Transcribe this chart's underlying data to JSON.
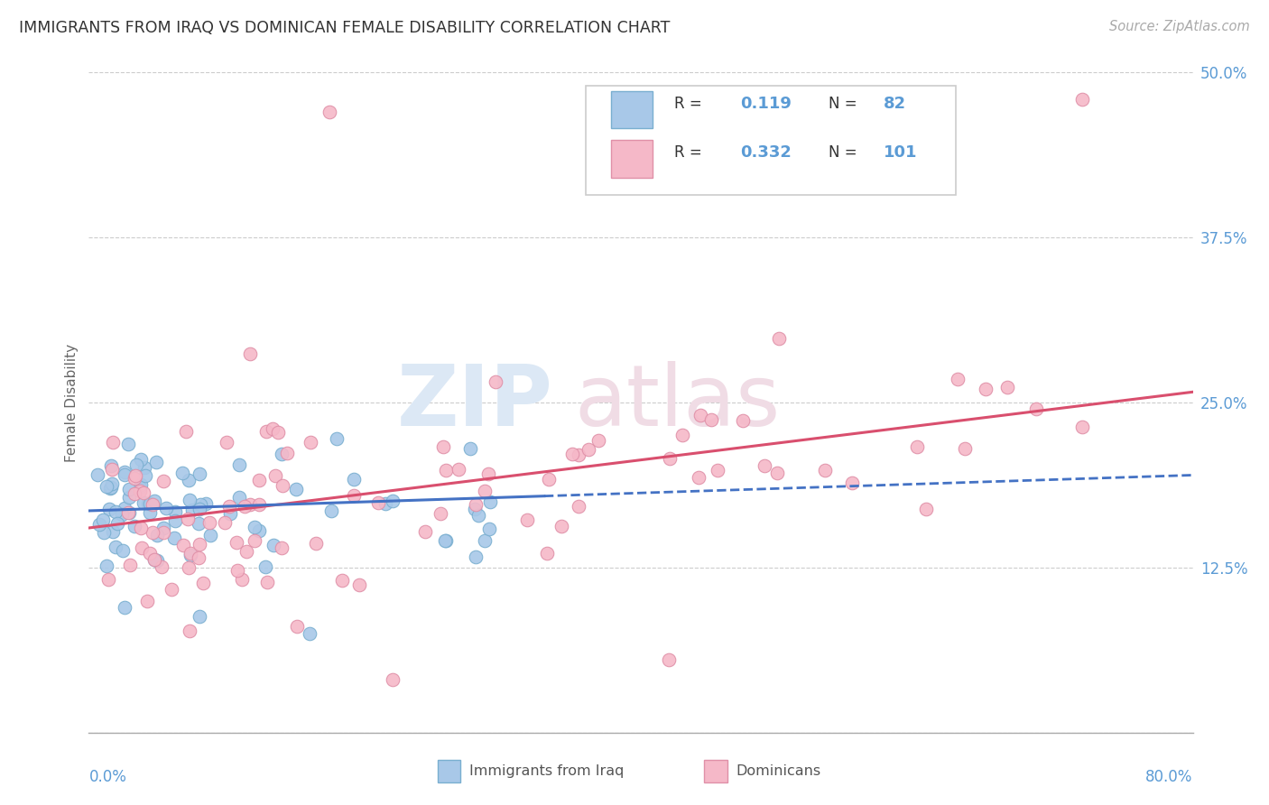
{
  "title": "IMMIGRANTS FROM IRAQ VS DOMINICAN FEMALE DISABILITY CORRELATION CHART",
  "source": "Source: ZipAtlas.com",
  "ylabel": "Female Disability",
  "x_range": [
    0.0,
    0.8
  ],
  "y_range": [
    0.0,
    0.5
  ],
  "y_ticks": [
    0.0,
    0.125,
    0.25,
    0.375,
    0.5
  ],
  "y_tick_labels": [
    "",
    "12.5%",
    "25.0%",
    "37.5%",
    "50.0%"
  ],
  "iraq_R": 0.119,
  "iraq_N": 82,
  "dom_R": 0.332,
  "dom_N": 101,
  "iraq_scatter_color": "#a8c8e8",
  "iraq_scatter_edge": "#7aafd0",
  "dominican_scatter_color": "#f5b8c8",
  "dominican_scatter_edge": "#e090a8",
  "iraq_line_color": "#4472c4",
  "dominican_line_color": "#d94f6e",
  "background_color": "#ffffff",
  "grid_color": "#cccccc",
  "title_color": "#333333",
  "source_color": "#aaaaaa",
  "axis_label_color": "#5b9bd5",
  "ylabel_color": "#666666",
  "watermark_zip_color": "#dce8f5",
  "watermark_atlas_color": "#f0dce5",
  "legend_edge_color": "#cccccc",
  "iraq_line_start_x": 0.0,
  "iraq_line_end_x": 0.8,
  "iraq_line_start_y": 0.168,
  "iraq_line_end_y": 0.195,
  "dom_line_start_x": 0.0,
  "dom_line_end_x": 0.8,
  "dom_line_start_y": 0.155,
  "dom_line_end_y": 0.258
}
